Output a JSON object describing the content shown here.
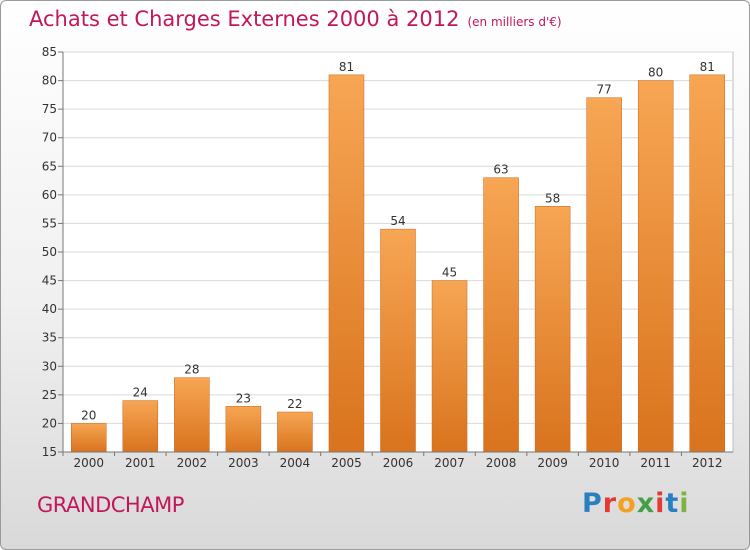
{
  "header": {
    "title": "Achats et Charges Externes 2000 à 2012",
    "unit": "(en milliers d'€)"
  },
  "footer": {
    "commune": "GRANDCHAMP",
    "logo_text": "Proxiti",
    "logo_colors": [
      "#2a7fc1",
      "#e53935",
      "#f4a020",
      "#43a047",
      "#e53935",
      "#2a7fc1",
      "#7cb342"
    ]
  },
  "chart_data": {
    "type": "bar",
    "title": "Achats et Charges Externes 2000 à 2012",
    "subtitle": "(en milliers d'€)",
    "xlabel": "",
    "ylabel": "",
    "categories": [
      "2000",
      "2001",
      "2002",
      "2003",
      "2004",
      "2005",
      "2006",
      "2007",
      "2008",
      "2009",
      "2010",
      "2011",
      "2012"
    ],
    "values": [
      20,
      24,
      28,
      23,
      22,
      81,
      54,
      45,
      63,
      58,
      77,
      80,
      81
    ],
    "ylim": [
      15,
      85
    ],
    "yticks": [
      15,
      20,
      25,
      30,
      35,
      40,
      45,
      50,
      55,
      60,
      65,
      70,
      75,
      80,
      85
    ],
    "grid": true,
    "bar_color_top": "#f7a654",
    "bar_color_bottom": "#d9731d"
  }
}
